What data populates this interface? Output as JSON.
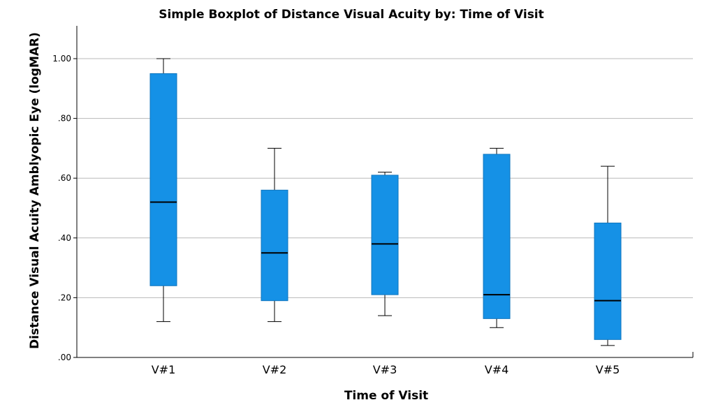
{
  "chart_data": {
    "type": "boxplot",
    "title": "Simple Boxplot of Distance Visual Acuity by: Time of Visit",
    "xlabel": "Time of Visit",
    "ylabel": "Distance Visual Acuity Amblyopic Eye (logMAR)",
    "ylim": [
      0,
      1.1
    ],
    "yticks": [
      0,
      0.2,
      0.4,
      0.6,
      0.8,
      1.0
    ],
    "ytick_labels": [
      ".00",
      ".20",
      ".40",
      ".60",
      ".80",
      "1.00"
    ],
    "grid": "horizontal",
    "categories": [
      "V#1",
      "V#2",
      "V#3",
      "V#4",
      "V#5"
    ],
    "boxes": [
      {
        "min": 0.12,
        "q1": 0.24,
        "median": 0.52,
        "q3": 0.95,
        "max": 1.0
      },
      {
        "min": 0.12,
        "q1": 0.19,
        "median": 0.35,
        "q3": 0.56,
        "max": 0.7
      },
      {
        "min": 0.14,
        "q1": 0.21,
        "median": 0.38,
        "q3": 0.61,
        "max": 0.62
      },
      {
        "min": 0.1,
        "q1": 0.13,
        "median": 0.21,
        "q3": 0.68,
        "max": 0.7
      },
      {
        "min": 0.04,
        "q1": 0.06,
        "median": 0.19,
        "q3": 0.45,
        "max": 0.64
      }
    ],
    "colors": {
      "box_fill": "#1591e6",
      "box_edge": "#0f75be",
      "grid": "#b8b8b8",
      "median": "#000000",
      "whisker": "#000000"
    }
  }
}
